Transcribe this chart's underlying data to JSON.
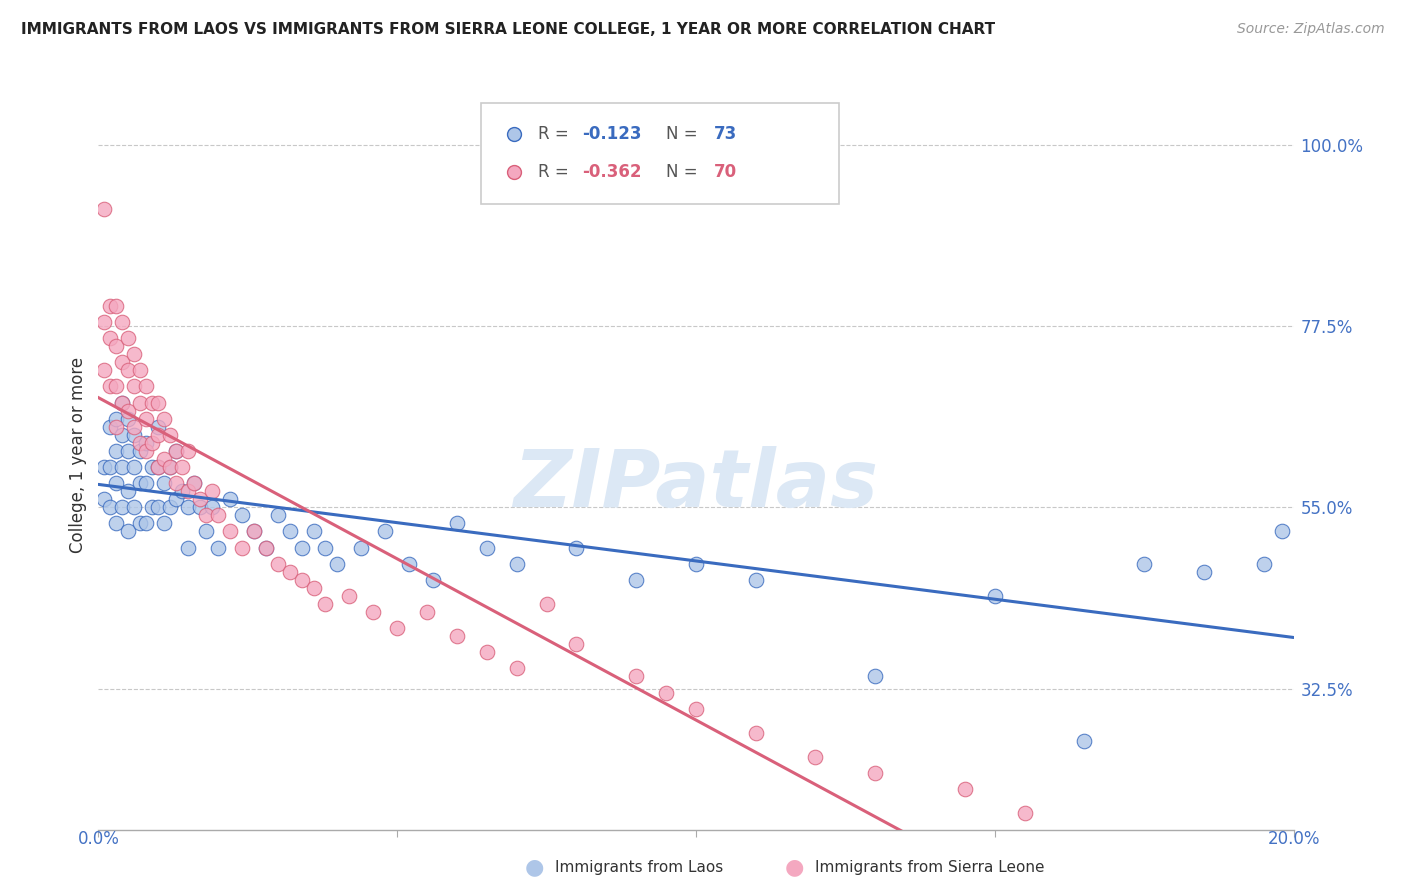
{
  "title": "IMMIGRANTS FROM LAOS VS IMMIGRANTS FROM SIERRA LEONE COLLEGE, 1 YEAR OR MORE CORRELATION CHART",
  "source": "Source: ZipAtlas.com",
  "ylabel": "College, 1 year or more",
  "right_yticks": [
    "100.0%",
    "77.5%",
    "55.0%",
    "32.5%"
  ],
  "right_ytick_vals": [
    1.0,
    0.775,
    0.55,
    0.325
  ],
  "x_range": [
    0.0,
    0.2
  ],
  "y_range": [
    0.15,
    1.08
  ],
  "laos_R": -0.123,
  "laos_N": 73,
  "sierra_R": -0.362,
  "sierra_N": 70,
  "laos_color": "#aec6e8",
  "sierra_color": "#f4a8c0",
  "laos_line_color": "#3a6bbf",
  "sierra_line_color": "#d9607a",
  "laos_scatter_x": [
    0.001,
    0.001,
    0.002,
    0.002,
    0.002,
    0.003,
    0.003,
    0.003,
    0.003,
    0.004,
    0.004,
    0.004,
    0.004,
    0.005,
    0.005,
    0.005,
    0.005,
    0.006,
    0.006,
    0.006,
    0.007,
    0.007,
    0.007,
    0.008,
    0.008,
    0.008,
    0.009,
    0.009,
    0.01,
    0.01,
    0.01,
    0.011,
    0.011,
    0.012,
    0.012,
    0.013,
    0.013,
    0.014,
    0.015,
    0.015,
    0.016,
    0.017,
    0.018,
    0.019,
    0.02,
    0.022,
    0.024,
    0.026,
    0.028,
    0.03,
    0.032,
    0.034,
    0.036,
    0.038,
    0.04,
    0.044,
    0.048,
    0.052,
    0.056,
    0.06,
    0.065,
    0.07,
    0.08,
    0.09,
    0.1,
    0.11,
    0.13,
    0.15,
    0.165,
    0.175,
    0.185,
    0.195,
    0.198
  ],
  "laos_scatter_y": [
    0.6,
    0.56,
    0.65,
    0.6,
    0.55,
    0.66,
    0.62,
    0.58,
    0.53,
    0.68,
    0.64,
    0.6,
    0.55,
    0.66,
    0.62,
    0.57,
    0.52,
    0.64,
    0.6,
    0.55,
    0.62,
    0.58,
    0.53,
    0.63,
    0.58,
    0.53,
    0.6,
    0.55,
    0.65,
    0.6,
    0.55,
    0.58,
    0.53,
    0.6,
    0.55,
    0.62,
    0.56,
    0.57,
    0.55,
    0.5,
    0.58,
    0.55,
    0.52,
    0.55,
    0.5,
    0.56,
    0.54,
    0.52,
    0.5,
    0.54,
    0.52,
    0.5,
    0.52,
    0.5,
    0.48,
    0.5,
    0.52,
    0.48,
    0.46,
    0.53,
    0.5,
    0.48,
    0.5,
    0.46,
    0.48,
    0.46,
    0.34,
    0.44,
    0.26,
    0.48,
    0.47,
    0.48,
    0.52
  ],
  "sierra_scatter_x": [
    0.001,
    0.001,
    0.001,
    0.002,
    0.002,
    0.002,
    0.003,
    0.003,
    0.003,
    0.003,
    0.004,
    0.004,
    0.004,
    0.005,
    0.005,
    0.005,
    0.006,
    0.006,
    0.006,
    0.007,
    0.007,
    0.007,
    0.008,
    0.008,
    0.008,
    0.009,
    0.009,
    0.01,
    0.01,
    0.01,
    0.011,
    0.011,
    0.012,
    0.012,
    0.013,
    0.013,
    0.014,
    0.015,
    0.015,
    0.016,
    0.017,
    0.018,
    0.019,
    0.02,
    0.022,
    0.024,
    0.026,
    0.028,
    0.03,
    0.032,
    0.034,
    0.036,
    0.038,
    0.042,
    0.046,
    0.05,
    0.055,
    0.06,
    0.065,
    0.07,
    0.075,
    0.08,
    0.09,
    0.095,
    0.1,
    0.11,
    0.12,
    0.13,
    0.145,
    0.155
  ],
  "sierra_scatter_y": [
    0.92,
    0.78,
    0.72,
    0.8,
    0.76,
    0.7,
    0.8,
    0.75,
    0.7,
    0.65,
    0.78,
    0.73,
    0.68,
    0.76,
    0.72,
    0.67,
    0.74,
    0.7,
    0.65,
    0.72,
    0.68,
    0.63,
    0.7,
    0.66,
    0.62,
    0.68,
    0.63,
    0.68,
    0.64,
    0.6,
    0.66,
    0.61,
    0.64,
    0.6,
    0.62,
    0.58,
    0.6,
    0.62,
    0.57,
    0.58,
    0.56,
    0.54,
    0.57,
    0.54,
    0.52,
    0.5,
    0.52,
    0.5,
    0.48,
    0.47,
    0.46,
    0.45,
    0.43,
    0.44,
    0.42,
    0.4,
    0.42,
    0.39,
    0.37,
    0.35,
    0.43,
    0.38,
    0.34,
    0.32,
    0.3,
    0.27,
    0.24,
    0.22,
    0.2,
    0.17
  ],
  "watermark": "ZIPatlas",
  "watermark_color": "#dce8f5",
  "background_color": "#ffffff",
  "grid_color": "#c8c8c8"
}
